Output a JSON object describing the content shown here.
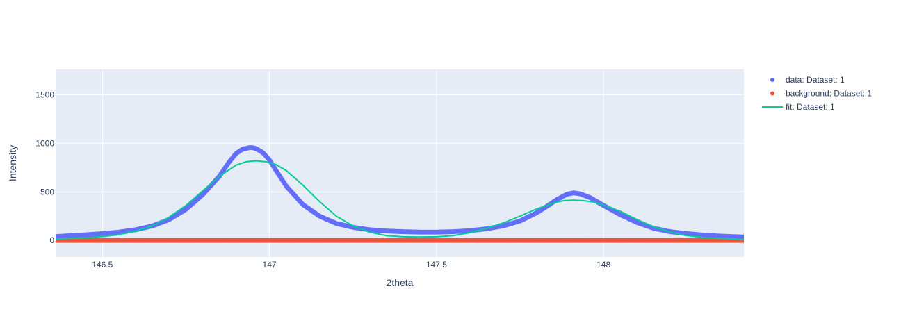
{
  "chart_data": {
    "type": "scatter",
    "title": "",
    "xlabel": "2theta",
    "ylabel": "Intensity",
    "xlim": [
      146.36,
      148.42
    ],
    "ylim": [
      -170,
      1760
    ],
    "x_ticks": [
      146.5,
      147,
      147.5,
      148
    ],
    "x_tick_labels": [
      "146.5",
      "147",
      "147.5",
      "148"
    ],
    "y_ticks": [
      0,
      500,
      1000,
      1500
    ],
    "y_tick_labels": [
      "0",
      "500",
      "1000",
      "1500"
    ],
    "grid": true,
    "legend_position": "top-right",
    "colors": {
      "plot_bg": "#e5ecf6",
      "grid": "#ffffff",
      "text": "#2a3f5f"
    },
    "series": [
      {
        "name": "data: Dataset: 1",
        "mode": "markers",
        "color": "#636efa",
        "x": [
          146.36,
          146.4,
          146.45,
          146.5,
          146.55,
          146.6,
          146.65,
          146.7,
          146.75,
          146.8,
          146.85,
          146.88,
          146.9,
          146.92,
          146.94,
          146.95,
          146.96,
          146.98,
          147.0,
          147.02,
          147.05,
          147.1,
          147.15,
          147.2,
          147.25,
          147.3,
          147.35,
          147.4,
          147.45,
          147.5,
          147.55,
          147.6,
          147.65,
          147.7,
          147.75,
          147.8,
          147.83,
          147.86,
          147.89,
          147.91,
          147.93,
          147.96,
          148.0,
          148.05,
          148.1,
          148.15,
          148.2,
          148.25,
          148.3,
          148.35,
          148.42
        ],
        "y": [
          40,
          48,
          58,
          70,
          86,
          110,
          150,
          215,
          320,
          470,
          660,
          810,
          895,
          940,
          955,
          955,
          945,
          905,
          830,
          720,
          560,
          370,
          250,
          175,
          135,
          110,
          97,
          90,
          86,
          86,
          90,
          100,
          120,
          150,
          200,
          285,
          350,
          420,
          475,
          490,
          480,
          440,
          360,
          265,
          185,
          125,
          90,
          70,
          55,
          45,
          35
        ]
      },
      {
        "name": "background: Dataset: 1",
        "mode": "markers",
        "color": "#ef553b",
        "x": [
          146.36,
          148.42
        ],
        "y": [
          0,
          0
        ]
      },
      {
        "name": "fit: Dataset: 1",
        "mode": "lines",
        "color": "#00cc96",
        "x": [
          146.36,
          146.4,
          146.45,
          146.5,
          146.55,
          146.6,
          146.65,
          146.7,
          146.75,
          146.8,
          146.85,
          146.9,
          146.93,
          146.96,
          146.99,
          147.02,
          147.05,
          147.1,
          147.15,
          147.2,
          147.25,
          147.3,
          147.35,
          147.4,
          147.45,
          147.5,
          147.55,
          147.6,
          147.65,
          147.7,
          147.75,
          147.8,
          147.85,
          147.88,
          147.91,
          147.94,
          147.97,
          148.0,
          148.05,
          148.1,
          148.15,
          148.2,
          148.25,
          148.3,
          148.35,
          148.42
        ],
        "y": [
          15,
          20,
          28,
          40,
          60,
          95,
          150,
          240,
          360,
          510,
          660,
          775,
          810,
          820,
          810,
          780,
          720,
          570,
          400,
          250,
          150,
          85,
          50,
          38,
          35,
          38,
          50,
          80,
          125,
          180,
          250,
          325,
          385,
          410,
          415,
          410,
          395,
          365,
          300,
          215,
          140,
          85,
          50,
          30,
          20,
          12
        ]
      }
    ]
  }
}
